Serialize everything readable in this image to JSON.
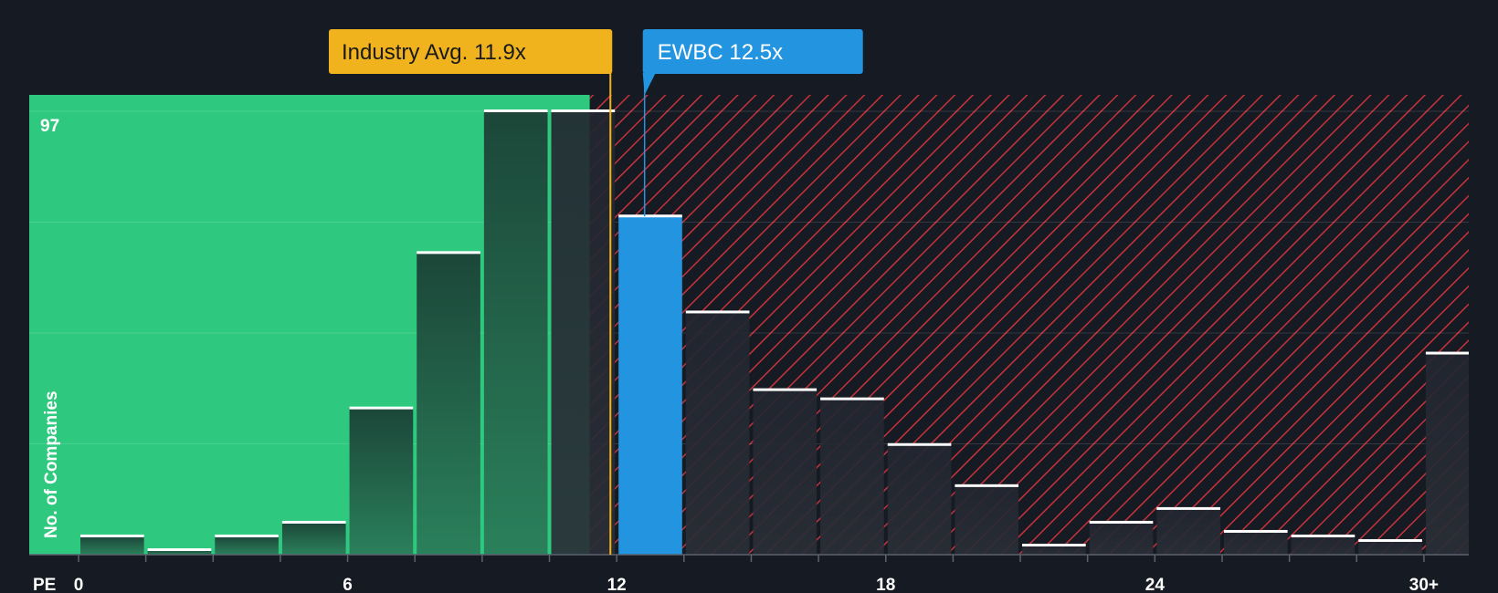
{
  "chart_data": {
    "type": "bar",
    "title": "",
    "xlabel": "PE",
    "ylabel": "No. of Companies",
    "x_ticks": [
      "0",
      "6",
      "12",
      "18",
      "24",
      "30+"
    ],
    "x_tick_values": [
      0,
      6,
      12,
      18,
      24,
      30
    ],
    "xlim": [
      -1.1,
      31
    ],
    "ylim": [
      0,
      97
    ],
    "y_max_label": "97",
    "bin_width": 1.5,
    "bin_starts": [
      0,
      1.5,
      3,
      4.5,
      6,
      7.5,
      9,
      10.5,
      12,
      13.5,
      15,
      16.5,
      18,
      19.5,
      21,
      22.5,
      24,
      25.5,
      27,
      28.5,
      30
    ],
    "values": [
      4,
      1,
      4,
      7,
      32,
      66,
      97,
      97,
      74,
      53,
      36,
      34,
      24,
      15,
      2,
      7,
      10,
      5,
      4,
      3,
      44
    ],
    "highlight_index": 8,
    "fair_zone_end": 11.4,
    "industry_avg": {
      "label": "Industry Avg. 11.9x",
      "value": 11.9
    },
    "company": {
      "label": "EWBC 12.5x",
      "value": 12.5
    },
    "colors": {
      "background": "#151a23",
      "fair_zone": "#2ec97e",
      "overvalued_hatch": "#d9363e",
      "bar_in_fair": "#1e4a3c",
      "bar_dark": "#202833",
      "highlight": "#2394e0",
      "industry_line": "#f0b31d",
      "company_line": "#2394e0",
      "cap": "#ffffff",
      "axis": "#5a6370"
    }
  }
}
